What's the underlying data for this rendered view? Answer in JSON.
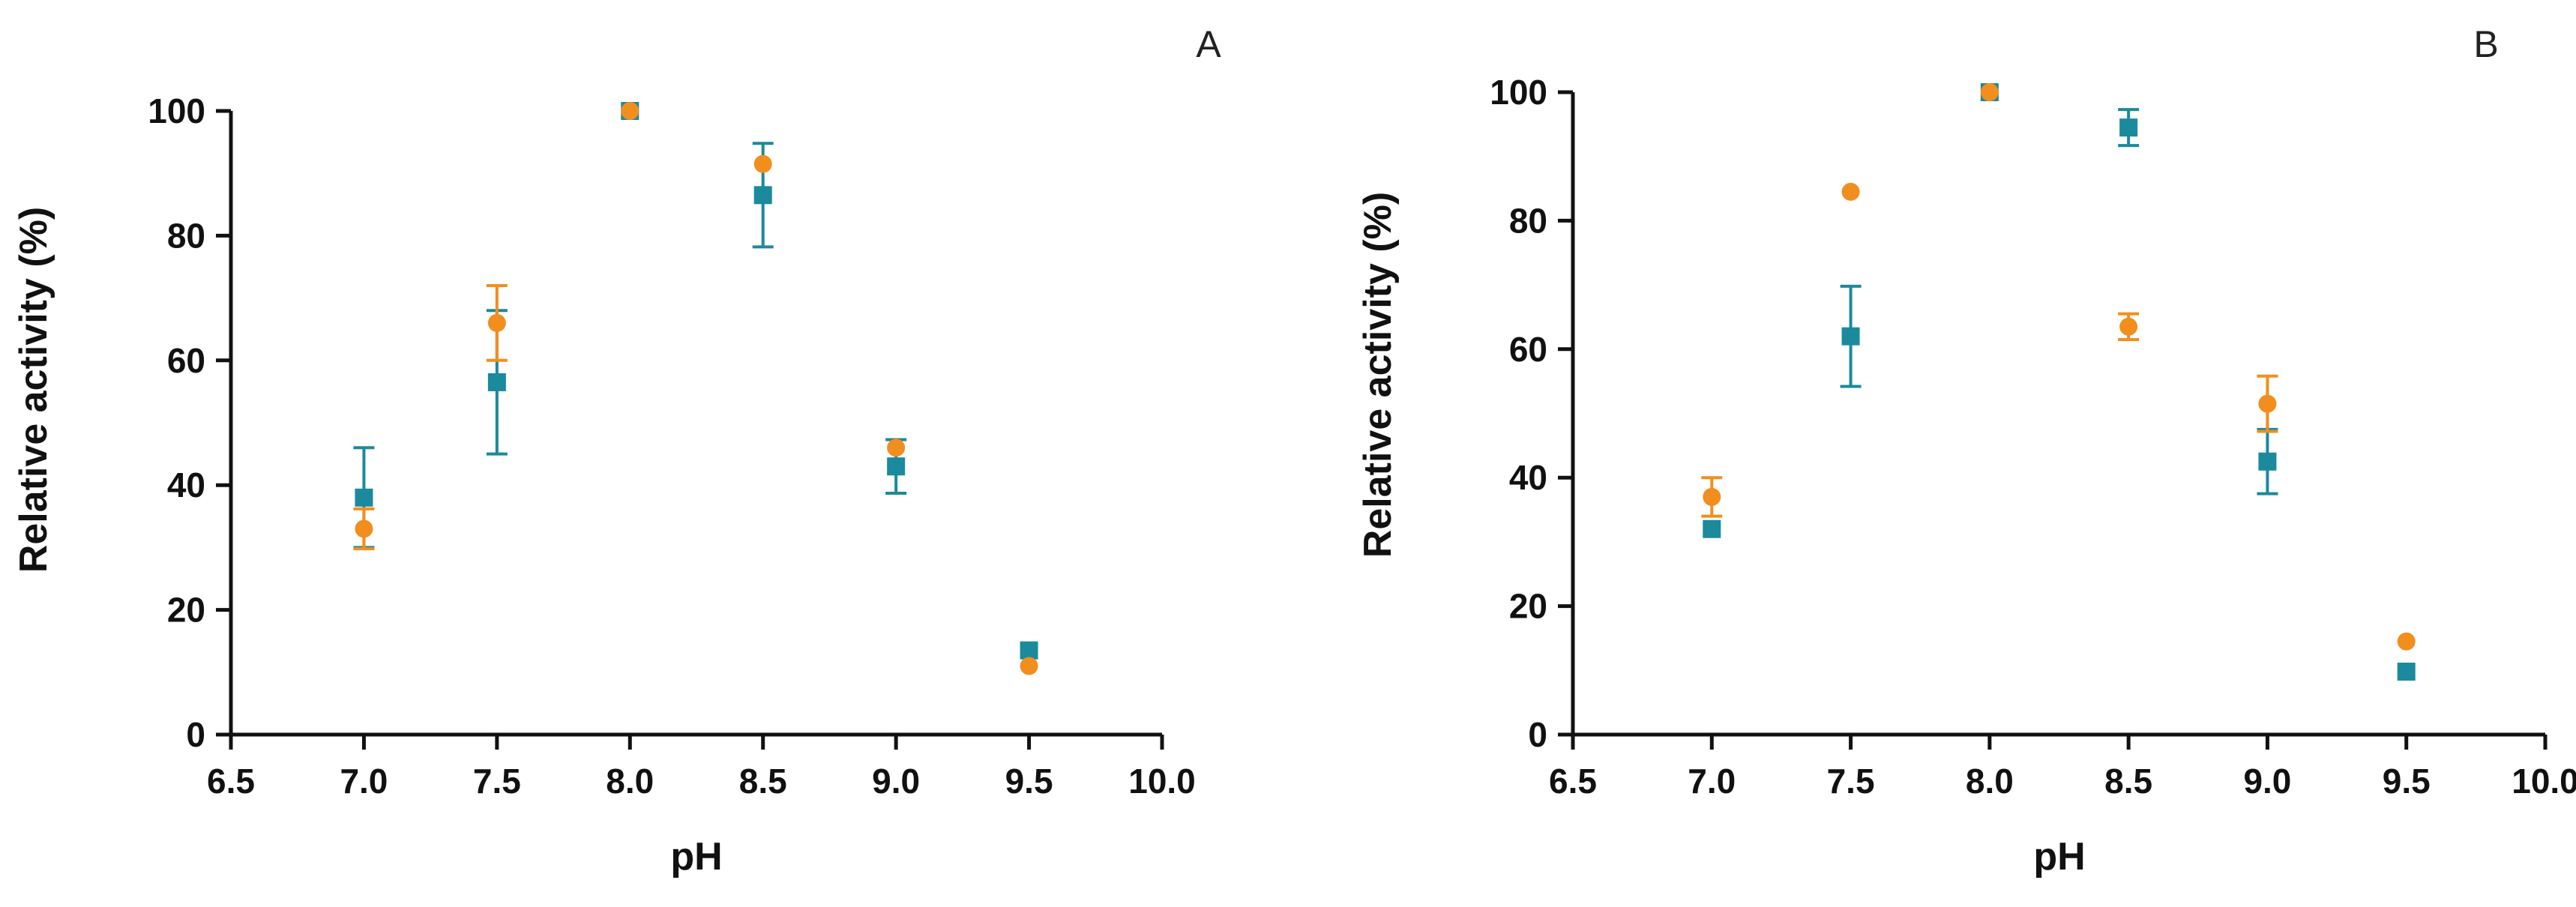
{
  "chart_data": [
    {
      "type": "scatter",
      "panel_label": "A",
      "xlabel": "pH",
      "ylabel": "Relative activity (%)",
      "xlim": [
        6.5,
        10.0
      ],
      "ylim": [
        0,
        100
      ],
      "xticks": [
        "6.5",
        "7.0",
        "7.5",
        "8.0",
        "8.5",
        "9.0",
        "9.5",
        "10.0"
      ],
      "yticks": [
        "0",
        "20",
        "40",
        "60",
        "80",
        "100"
      ],
      "grid": false,
      "series": [
        {
          "name": "teal squares",
          "marker": "square",
          "color": "#1a8a9c",
          "x": [
            7.0,
            7.5,
            8.0,
            8.5,
            9.0,
            9.5
          ],
          "y": [
            38,
            56.5,
            100,
            86.5,
            43,
            13.5
          ],
          "err": [
            8,
            11.5,
            0,
            8.3,
            4.3,
            0
          ]
        },
        {
          "name": "orange circles",
          "marker": "circle",
          "color": "#f28e1e",
          "x": [
            7.0,
            7.5,
            8.0,
            8.5,
            9.0,
            9.5
          ],
          "y": [
            33,
            66,
            100,
            91.5,
            46,
            11
          ],
          "err": [
            3.2,
            6,
            0,
            0,
            0,
            0
          ]
        }
      ]
    },
    {
      "type": "scatter",
      "panel_label": "B",
      "xlabel": "pH",
      "ylabel": "Relative activity (%)",
      "xlim": [
        6.5,
        10.0
      ],
      "ylim": [
        0,
        100
      ],
      "xticks": [
        "6.5",
        "7.0",
        "7.5",
        "8.0",
        "8.5",
        "9.0",
        "9.5",
        "10.0"
      ],
      "yticks": [
        "0",
        "20",
        "40",
        "60",
        "80",
        "100"
      ],
      "grid": false,
      "series": [
        {
          "name": "teal squares",
          "marker": "square",
          "color": "#1a8a9c",
          "x": [
            7.0,
            7.5,
            8.0,
            8.5,
            9.0,
            9.5
          ],
          "y": [
            32,
            62,
            100,
            94.5,
            42.5,
            9.8
          ],
          "err": [
            0,
            7.8,
            0,
            2.8,
            5,
            0
          ]
        },
        {
          "name": "orange circles",
          "marker": "circle",
          "color": "#f28e1e",
          "x": [
            7.0,
            7.5,
            8.0,
            8.5,
            9.0,
            9.5
          ],
          "y": [
            37,
            84.5,
            100,
            63.5,
            51.5,
            14.5
          ],
          "err": [
            3,
            0,
            0,
            2,
            4.3,
            0
          ]
        }
      ]
    }
  ]
}
